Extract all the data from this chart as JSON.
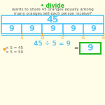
{
  "title_text": "• divide",
  "title_color": "#22bb22",
  "question_line1": "wants to share 45 oranges equally among",
  "question_line2": "many oranges will each person receive?",
  "big_box_value": "45",
  "box_color": "#5bc8f5",
  "small_box_values": [
    "9",
    "9",
    "9",
    "9",
    "9"
  ],
  "tick_labels": [
    "9",
    "18",
    "27",
    "36",
    "45"
  ],
  "equation": "45 ÷ 5 = 9",
  "side_eq1": "× 5 = 45",
  "side_eq2": "× 5 = 50",
  "answer_box_value": "9",
  "answer_box_border": "#22bb22",
  "bg_color": "#fffde8",
  "text_color": "#555555",
  "orange_color": "#f5a623",
  "white": "#ffffff"
}
